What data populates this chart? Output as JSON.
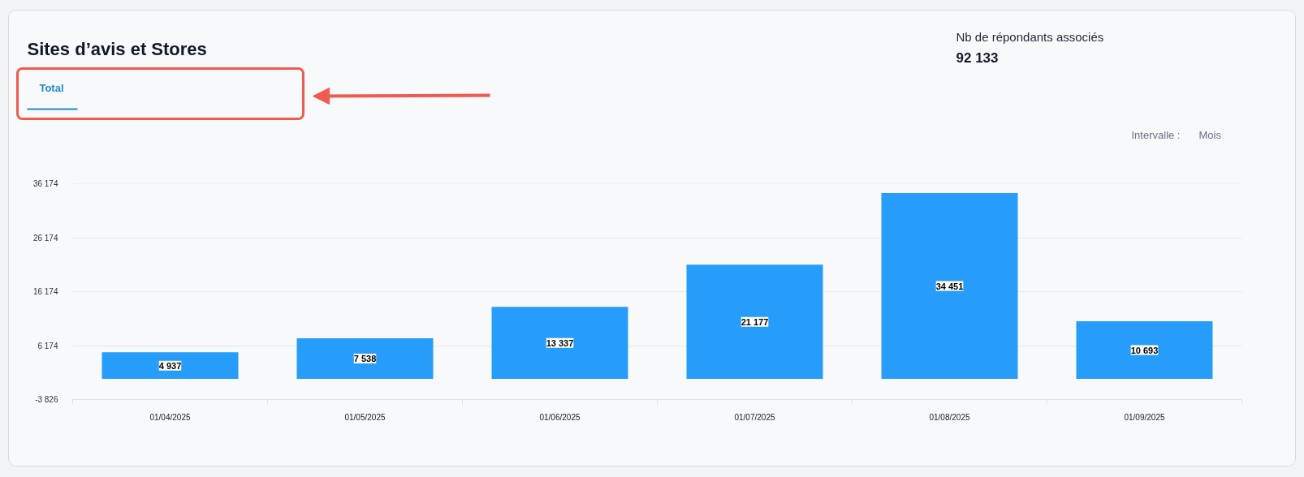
{
  "chart_data": {
    "type": "bar",
    "title": "Sites d’avis et Stores",
    "annotations": [
      "Total",
      "Nb de répondants associés",
      "92 133",
      "Intervalle :",
      "Mois"
    ],
    "categories": [
      "01/04/2025",
      "01/05/2025",
      "01/06/2025",
      "01/07/2025",
      "01/08/2025",
      "01/09/2025"
    ],
    "values": [
      4937,
      7538,
      13337,
      21177,
      34451,
      10693
    ],
    "color": "#269dfb",
    "data_labels": true,
    "ylim": [
      -3826,
      36174
    ],
    "yticks": [
      {
        "value": -3826,
        "label": "-3 826"
      },
      {
        "value": 6174,
        "label": "6 174"
      },
      {
        "value": 16174,
        "label": "16 174"
      },
      {
        "value": 26174,
        "label": "26 174"
      },
      {
        "value": 36174,
        "label": "36 174"
      }
    ],
    "grid": "y"
  }
}
